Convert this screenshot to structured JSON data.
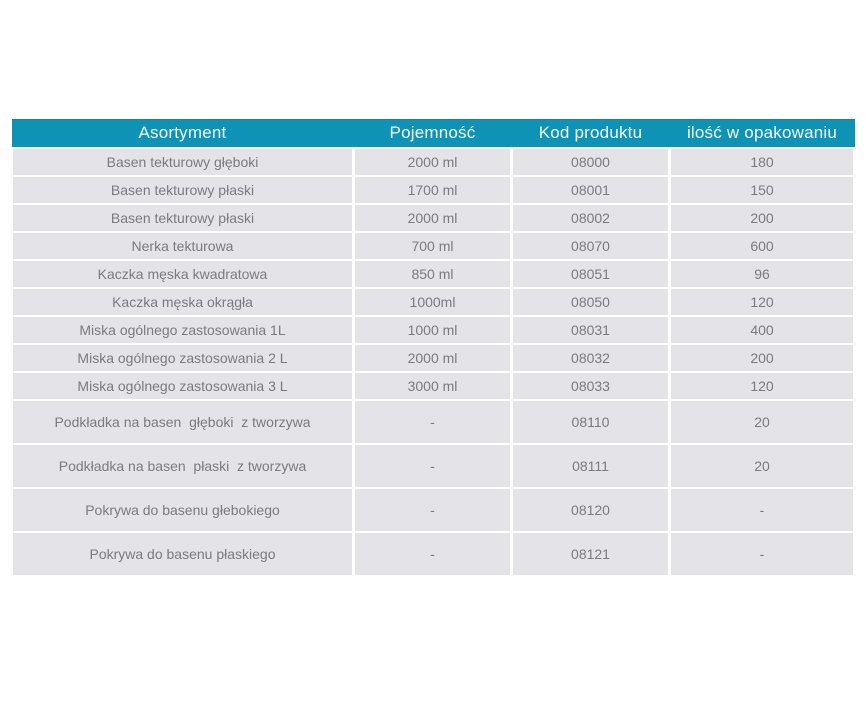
{
  "colors": {
    "header_bg": "#0e93b7",
    "header_edge": "#1284a4",
    "header_text": "#f4fbfd",
    "row_bg": "#e4e4e8",
    "row_text": "#7a7b7e",
    "gap": "#ffffff"
  },
  "table": {
    "headers": [
      "Asortyment",
      "Pojemność",
      "Kod produktu",
      "ilość w opakowaniu"
    ],
    "rows": [
      {
        "tall": false,
        "cells": [
          "Basen tekturowy głęboki",
          "2000 ml",
          "08000",
          "180"
        ]
      },
      {
        "tall": false,
        "cells": [
          "Basen tekturowy płaski",
          "1700 ml",
          "08001",
          "150"
        ]
      },
      {
        "tall": false,
        "cells": [
          "Basen tekturowy płaski",
          "2000 ml",
          "08002",
          "200"
        ]
      },
      {
        "tall": false,
        "cells": [
          "Nerka tekturowa",
          "700 ml",
          "08070",
          "600"
        ]
      },
      {
        "tall": false,
        "cells": [
          "Kaczka męska kwadratowa",
          "850 ml",
          "08051",
          "96"
        ]
      },
      {
        "tall": false,
        "cells": [
          "Kaczka męska okrągła",
          "1000ml",
          "08050",
          "120"
        ]
      },
      {
        "tall": false,
        "cells": [
          "Miska ogólnego zastosowania 1L",
          "1000 ml",
          "08031",
          "400"
        ]
      },
      {
        "tall": false,
        "cells": [
          "Miska ogólnego zastosowania 2 L",
          "2000 ml",
          "08032",
          "200"
        ]
      },
      {
        "tall": false,
        "cells": [
          "Miska ogólnego zastosowania 3 L",
          "3000 ml",
          "08033",
          "120"
        ]
      },
      {
        "tall": true,
        "cells": [
          "Podkładka na basen  głęboki  z tworzywa",
          "-",
          "08110",
          "20"
        ]
      },
      {
        "tall": true,
        "cells": [
          "Podkładka na basen  płaski  z tworzywa",
          "-",
          "08111",
          "20"
        ]
      },
      {
        "tall": true,
        "cells": [
          "Pokrywa do basenu głebokiego",
          "-",
          "08120",
          "-"
        ]
      },
      {
        "tall": true,
        "cells": [
          "Pokrywa do basenu płaskiego",
          "-",
          "08121",
          "-"
        ]
      }
    ]
  }
}
